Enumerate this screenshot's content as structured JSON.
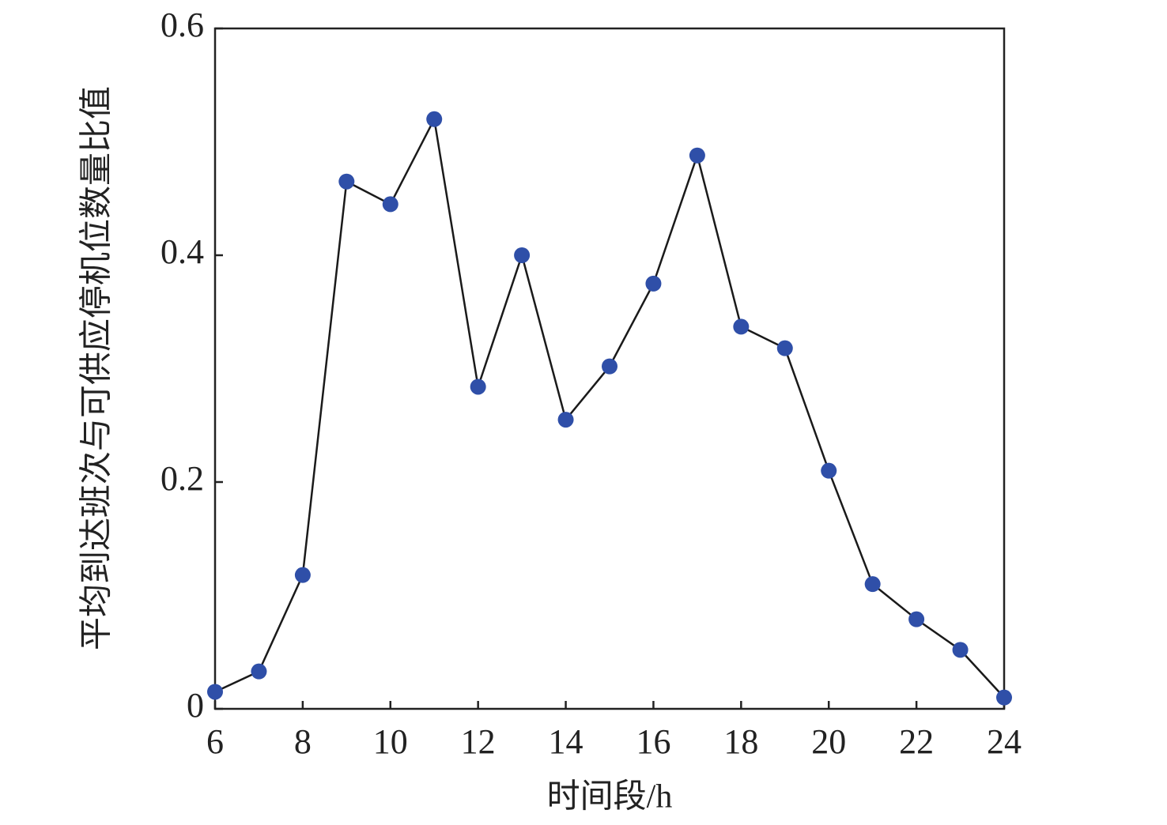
{
  "chart_data": {
    "type": "line",
    "x_label": "时间段/h",
    "y_label": "平均到达班次与可供应停机位数量比值",
    "x": [
      6,
      7,
      8,
      9,
      10,
      11,
      12,
      13,
      14,
      15,
      16,
      17,
      18,
      19,
      20,
      21,
      22,
      23,
      24
    ],
    "series": [
      {
        "color": "#2f4fa8",
        "line_color": "#1a1a1a",
        "values": [
          0.015,
          0.033,
          0.118,
          0.465,
          0.445,
          0.52,
          0.284,
          0.4,
          0.255,
          0.302,
          0.375,
          0.488,
          0.337,
          0.318,
          0.21,
          0.11,
          0.079,
          0.052,
          0.01
        ]
      }
    ],
    "xlim": [
      6,
      24
    ],
    "xticks": [
      6,
      8,
      10,
      12,
      14,
      16,
      18,
      20,
      22,
      24
    ],
    "ylim": [
      0,
      0.6
    ],
    "yticks": [
      0,
      0.2,
      0.4,
      0.6
    ],
    "grid": false
  }
}
